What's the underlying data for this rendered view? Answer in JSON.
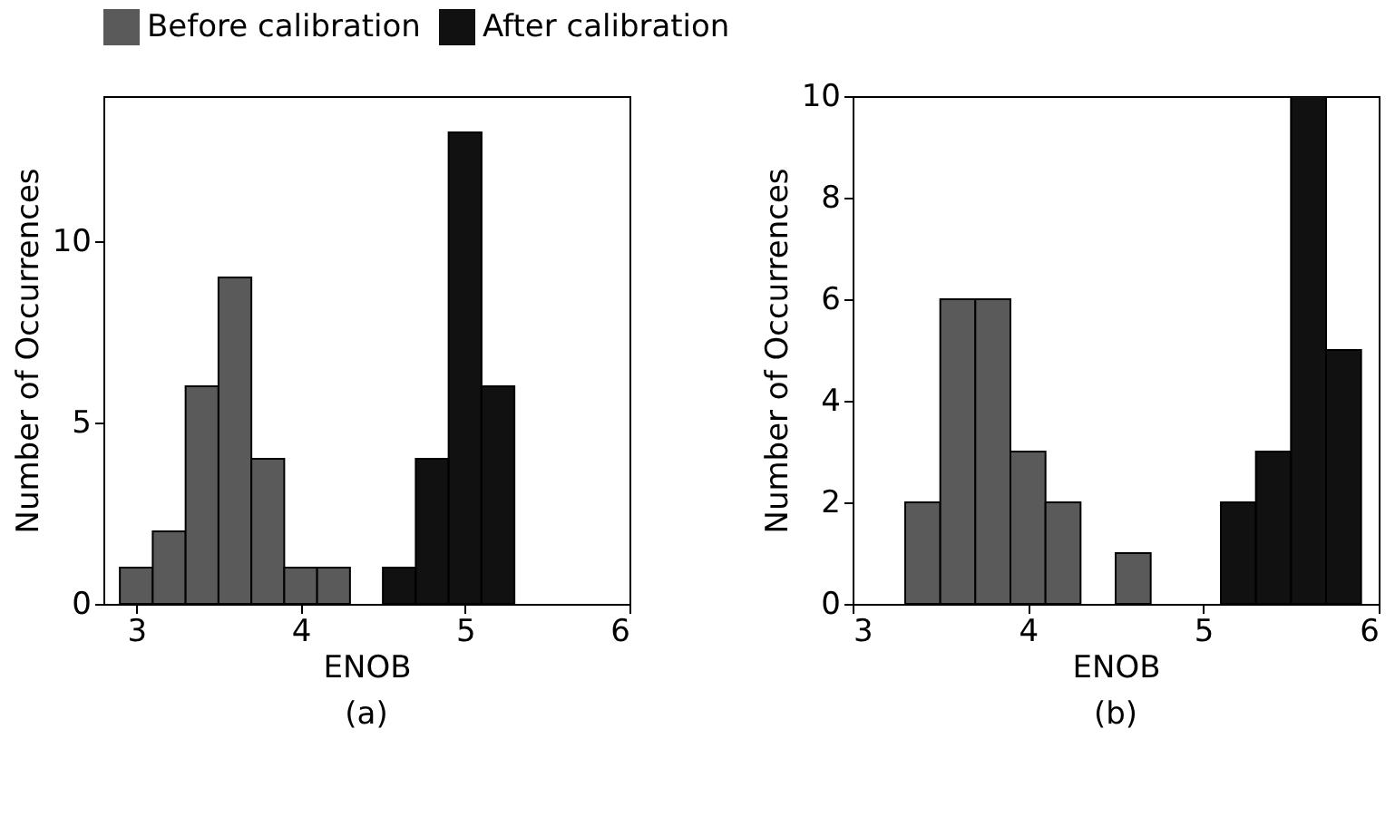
{
  "chart_data": [
    {
      "type": "histogram",
      "xlabel": "ENOB",
      "ylabel": "Number of Occurrences",
      "annotations": [
        "(a)"
      ],
      "bins": [
        2.9,
        3.1,
        3.3,
        3.5,
        3.7,
        3.9,
        4.1,
        4.3,
        4.5,
        4.7,
        4.9,
        5.1,
        5.3
      ],
      "series": [
        {
          "name": "Before calibration",
          "color": "#5a5a5a",
          "values": [
            1,
            2,
            6,
            9,
            4,
            1,
            1,
            0,
            0,
            0,
            0,
            0
          ]
        },
        {
          "name": "After calibration",
          "color": "#111111",
          "values": [
            0,
            0,
            0,
            0,
            0,
            0,
            0,
            0,
            1,
            4,
            13,
            6
          ]
        }
      ],
      "xlim": [
        2.8,
        6
      ],
      "xticks": [
        3,
        4,
        5,
        6
      ],
      "ylim": [
        0,
        14
      ],
      "yticks": [
        0,
        5,
        10
      ],
      "grid": false,
      "legend": "top"
    },
    {
      "type": "histogram",
      "xlabel": "ENOB",
      "ylabel": "Number of Occurrences",
      "annotations": [
        "(b)"
      ],
      "bins": [
        3.3,
        3.5,
        3.7,
        3.9,
        4.1,
        4.3,
        4.5,
        4.7,
        4.9,
        5.1,
        5.3,
        5.5,
        5.7,
        5.9
      ],
      "series": [
        {
          "name": "Before calibration",
          "color": "#5a5a5a",
          "values": [
            2,
            6,
            6,
            3,
            2,
            0,
            1,
            0,
            0,
            0,
            0,
            0,
            0
          ]
        },
        {
          "name": "After calibration",
          "color": "#111111",
          "values": [
            0,
            0,
            0,
            0,
            0,
            0,
            0,
            0,
            0,
            2,
            3,
            10,
            5
          ]
        }
      ],
      "xlim": [
        3,
        6
      ],
      "xticks": [
        3,
        4,
        5,
        6
      ],
      "ylim": [
        0,
        10
      ],
      "yticks": [
        0,
        2,
        4,
        6,
        8,
        10
      ],
      "grid": false,
      "legend": "top"
    }
  ]
}
